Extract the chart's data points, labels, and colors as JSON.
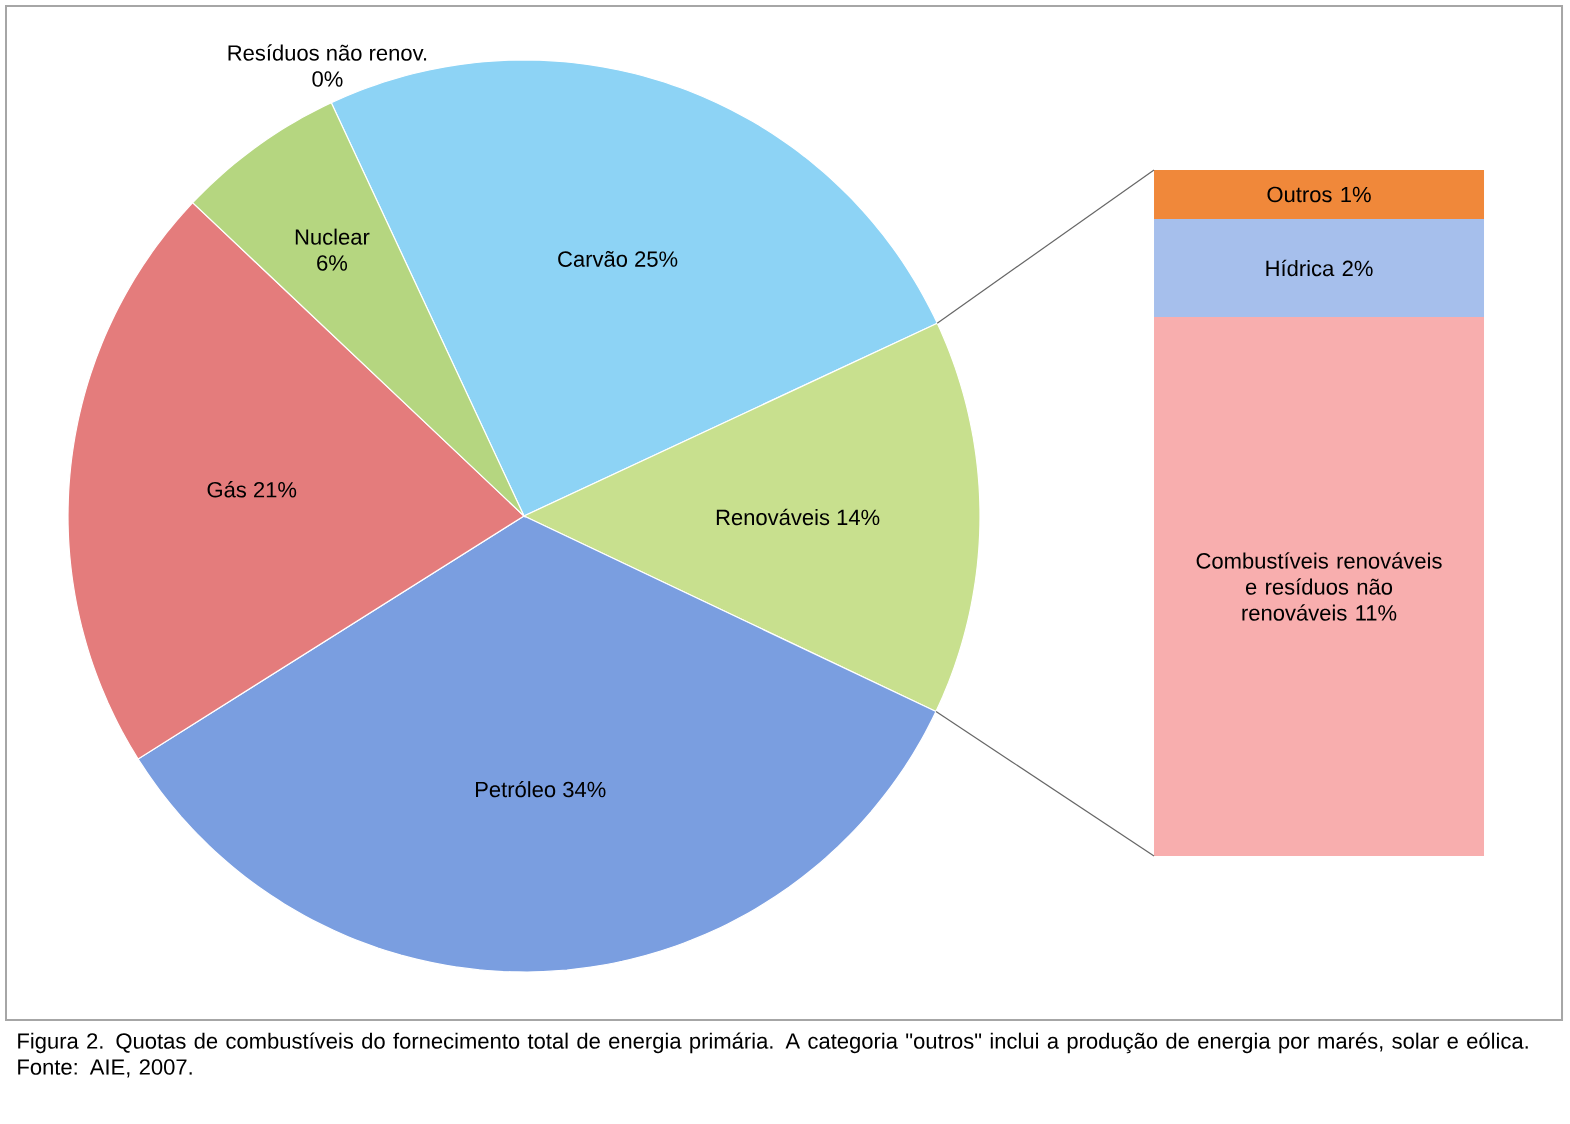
{
  "chart_data": [
    {
      "type": "pie",
      "categories": [
        "Resíduos não renov.",
        "Carvão",
        "Renováveis",
        "Petróleo",
        "Gás",
        "Nuclear"
      ],
      "values": [
        0,
        25,
        14,
        34,
        21,
        6
      ],
      "value_labels": [
        "0%",
        "25%",
        "14%",
        "34%",
        "21%",
        "6%"
      ],
      "colors": [
        "#b080b0",
        "#8dd3f5",
        "#c8e08e",
        "#7a9ee0",
        "#e47c7c",
        "#b5d680"
      ],
      "annotations": [
        "Figura 2.  Quotas de combustíveis do fornecimento total de energia primária.  A categoria \"outros\" inclui a produção de energia por marés, solar e eólica.  Fonte: AIE, 2007."
      ]
    },
    {
      "type": "bar",
      "stacked": true,
      "categories": [
        null
      ],
      "series": [
        {
          "name": "Combustíveis renováveis e resíduos não renováveis",
          "color": "#f8aeae",
          "values": [
            11
          ],
          "value_labels": [
            "11%"
          ]
        },
        {
          "name": "Hídrica",
          "color": "#a6bfec",
          "values": [
            2
          ],
          "value_labels": [
            "2%"
          ]
        },
        {
          "name": "Outros",
          "color": "#f0883a",
          "values": [
            1
          ],
          "value_labels": [
            "1%"
          ]
        }
      ]
    }
  ]
}
